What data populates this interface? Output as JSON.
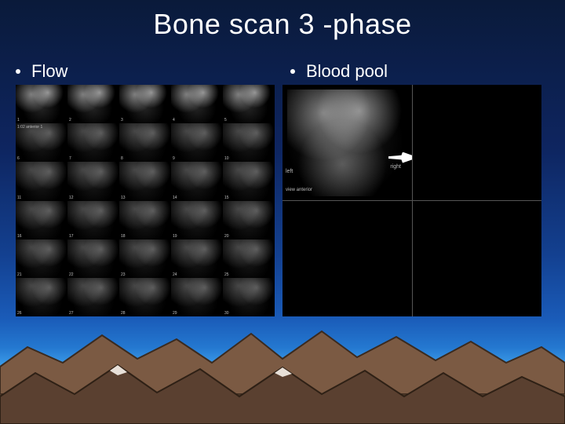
{
  "slide": {
    "title": "Bone scan 3 -phase",
    "title_color": "#ffffff",
    "title_fontsize": 36,
    "background_gradient": [
      "#0a1a3a",
      "#0e2560",
      "#134090",
      "#1a5bb8",
      "#2478d0",
      "#3a9ae8"
    ],
    "columns": [
      {
        "bullet": "•",
        "label": "Flow"
      },
      {
        "bullet": "•",
        "label": "Blood pool"
      }
    ]
  },
  "flow_panel": {
    "type": "image-grid",
    "rows": 6,
    "cols": 5,
    "background": "#000000",
    "side_label": "1:02\nanterior\n1",
    "frame_numbers": [
      "1",
      "2",
      "3",
      "4",
      "5",
      "6",
      "7",
      "8",
      "9",
      "10",
      "11",
      "12",
      "13",
      "14",
      "15",
      "16",
      "17",
      "18",
      "19",
      "20",
      "21",
      "22",
      "23",
      "24",
      "25",
      "26",
      "27",
      "28",
      "29",
      "30"
    ],
    "grayscale_noise": true
  },
  "pool_panel": {
    "type": "image-grid",
    "rows": 2,
    "cols": 2,
    "background": "#000000",
    "divider_color": "#555555",
    "quadrants": {
      "q0": {
        "has_image": true,
        "left_label": "left",
        "right_label": "right",
        "view_label": "view\nanterior",
        "marker": true
      },
      "q1": {
        "has_image": false
      },
      "q2": {
        "has_image": false
      },
      "q3": {
        "has_image": false
      }
    }
  },
  "mountains": {
    "back_fill": "#7b5a43",
    "back_stroke": "#3b2a1e",
    "front_fill": "#5a4030",
    "front_stroke": "#2e2015",
    "ground_gradient": [
      "#4d3828",
      "#3a2a1e"
    ]
  }
}
